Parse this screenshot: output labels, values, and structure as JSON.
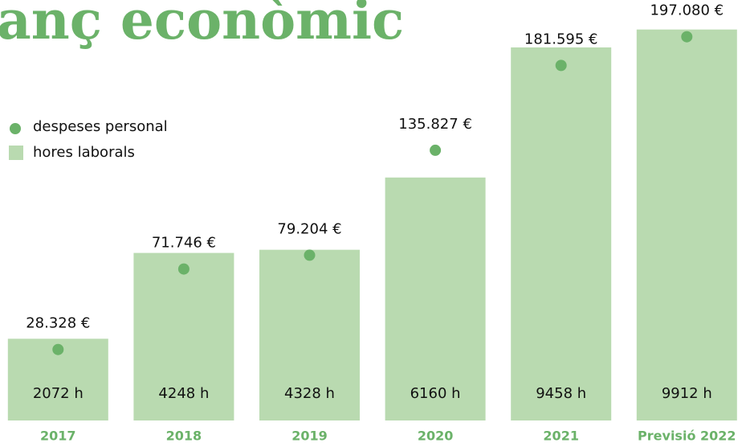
{
  "chart_data": {
    "type": "bar",
    "title": "anç econòmic",
    "title_color": "#6bb269",
    "categories": [
      "2017",
      "2018",
      "2019",
      "2020",
      "2021",
      "Previsió 2022"
    ],
    "category_color": "#6bb269",
    "ylim": [
      0,
      10660
    ],
    "y2lim": [
      -9980,
      216900
    ],
    "legend": "upper left",
    "series": [
      {
        "name": "despeses personal",
        "type": "scatter",
        "axis": "y2",
        "color": "#6bb269",
        "values": [
          28328,
          71746,
          79204,
          135827,
          181595,
          197080
        ],
        "value_labels": [
          "28.328 €",
          "71.746 €",
          "79.204 €",
          "135.827 €",
          "181.595 €",
          "197.080 €"
        ]
      },
      {
        "name": "hores laborals",
        "type": "bar",
        "color": "#b9dab0",
        "values": [
          2072,
          4248,
          4328,
          6160,
          9458,
          9912
        ],
        "value_labels": [
          "2072 h",
          "4248 h",
          "4328 h",
          "6160 h",
          "9458 h",
          "9912 h"
        ]
      }
    ]
  }
}
